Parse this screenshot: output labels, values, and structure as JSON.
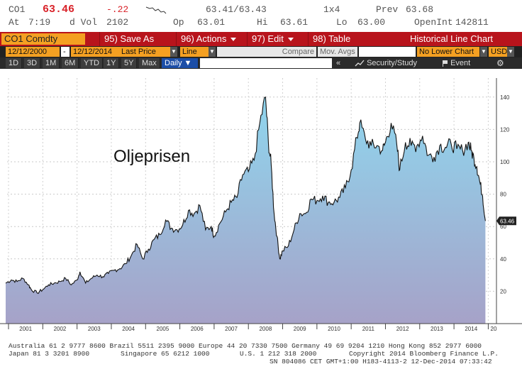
{
  "quote": {
    "ticker": "CO1",
    "last": "63.46",
    "change": "-.22",
    "bid_ask": "63.41/63.43",
    "size": "1x4",
    "prev_label": "Prev",
    "prev_value": "63.68",
    "time_label": "At",
    "time_value": "7:19",
    "vol_label": "d Vol",
    "vol_value": "2102",
    "open_label": "Op",
    "open_value": "63.01",
    "high_label": "Hi",
    "high_value": "63.61",
    "low_label": "Lo",
    "low_value": "63.00",
    "oi_label": "OpenInt",
    "oi_value": "142811"
  },
  "funcbar": {
    "security": "CO1 Comdty",
    "save": "95) Save As",
    "actions": "96) Actions",
    "edit": "97) Edit",
    "table": "98) Table",
    "title": "Historical Line Chart"
  },
  "params": {
    "start_date": "12/12/2000",
    "dash": "-",
    "end_date": "12/12/2014",
    "field": "Last Price",
    "chart_type": "Line",
    "compare": "Compare",
    "mov_avgs": "Mov. Avgs",
    "lower_chart": "No Lower Chart",
    "currency": "USD"
  },
  "periods": {
    "items": [
      "1D",
      "3D",
      "1M",
      "6M",
      "YTD",
      "1Y",
      "5Y",
      "Max"
    ],
    "active": "Daily ▼",
    "arrows": "«",
    "security_study": "Security/Study",
    "event": "Event",
    "settings_icon": "gear-icon"
  },
  "colors": {
    "brand_red": "#b8141c",
    "bloomberg_orange": "#f4a022",
    "price_line": "#111111",
    "fill_top": "#8fd6ee",
    "fill_bottom": "#a6a2c8",
    "last_price_tag": "#222222"
  },
  "chart_data": {
    "type": "area",
    "title": "Oljeprisen",
    "series": [
      {
        "name": "",
        "x": [
          "2000-12",
          "2001-02",
          "2001-04",
          "2001-06",
          "2001-08",
          "2001-09",
          "2001-11",
          "2002-01",
          "2002-03",
          "2002-05",
          "2002-07",
          "2002-09",
          "2002-11",
          "2003-01",
          "2003-02",
          "2003-04",
          "2003-06",
          "2003-08",
          "2003-10",
          "2003-12",
          "2004-02",
          "2004-04",
          "2004-06",
          "2004-08",
          "2004-10",
          "2004-12",
          "2005-02",
          "2005-04",
          "2005-06",
          "2005-08",
          "2005-10",
          "2005-12",
          "2006-02",
          "2006-04",
          "2006-06",
          "2006-08",
          "2006-10",
          "2006-12",
          "2007-01",
          "2007-03",
          "2007-05",
          "2007-07",
          "2007-09",
          "2007-11",
          "2008-01",
          "2008-03",
          "2008-05",
          "2008-07",
          "2008-08",
          "2008-09",
          "2008-10",
          "2008-11",
          "2008-12",
          "2009-01",
          "2009-03",
          "2009-05",
          "2009-07",
          "2009-09",
          "2009-11",
          "2010-01",
          "2010-03",
          "2010-05",
          "2010-07",
          "2010-09",
          "2010-11",
          "2011-01",
          "2011-03",
          "2011-04",
          "2011-06",
          "2011-08",
          "2011-10",
          "2011-12",
          "2012-01",
          "2012-03",
          "2012-05",
          "2012-06",
          "2012-08",
          "2012-10",
          "2012-12",
          "2013-02",
          "2013-04",
          "2013-06",
          "2013-08",
          "2013-10",
          "2013-12",
          "2014-02",
          "2014-04",
          "2014-06",
          "2014-07",
          "2014-08",
          "2014-09",
          "2014-10",
          "2014-11",
          "2014-12"
        ],
        "values": [
          25,
          27,
          26,
          28,
          24,
          21,
          19,
          21,
          24,
          25,
          26,
          28,
          24,
          27,
          32,
          25,
          28,
          30,
          29,
          31,
          33,
          34,
          37,
          42,
          49,
          40,
          46,
          52,
          55,
          64,
          59,
          58,
          61,
          70,
          68,
          73,
          58,
          60,
          54,
          62,
          69,
          75,
          78,
          92,
          94,
          101,
          124,
          140,
          112,
          98,
          68,
          54,
          40,
          45,
          48,
          58,
          68,
          68,
          77,
          76,
          79,
          75,
          75,
          78,
          84,
          95,
          115,
          124,
          114,
          110,
          110,
          107,
          112,
          124,
          110,
          95,
          112,
          110,
          110,
          116,
          104,
          103,
          110,
          109,
          111,
          108,
          107,
          112,
          107,
          102,
          97,
          88,
          79,
          63.46
        ]
      }
    ],
    "x_tick_labels": [
      "2001",
      "2002",
      "2003",
      "2004",
      "2005",
      "2006",
      "2007",
      "2008",
      "2009",
      "2010",
      "2011",
      "2012",
      "2013",
      "2014",
      "20"
    ],
    "y_tick_labels": [
      20,
      40,
      60,
      80,
      100,
      120,
      140
    ],
    "ylim": [
      0,
      150
    ],
    "last_value_label": "63.46",
    "grid": true,
    "y_axis_side": "right"
  },
  "footer": {
    "line1": "Australia 61 2 9777 8600 Brazil 5511 2395 9000 Europe 44 20 7330 7500 Germany 49 69 9204 1210 Hong Kong 852 2977 6000",
    "line2a": "Japan 81 3 3201 8900",
    "line2b": "Singapore 65 6212 1000",
    "line2c": "U.S. 1 212 318 2000",
    "line2d": "Copyright 2014 Bloomberg Finance L.P.",
    "line3": "SN 804086 CET  GMT+1:00 H183-4113-2 12-Dec-2014 07:33:42"
  }
}
